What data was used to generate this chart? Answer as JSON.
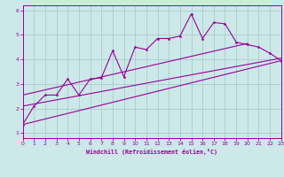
{
  "xlabel": "Windchill (Refroidissement éolien,°C)",
  "xlim": [
    0,
    23
  ],
  "ylim": [
    0.8,
    6.2
  ],
  "xticks": [
    0,
    1,
    2,
    3,
    4,
    5,
    6,
    7,
    8,
    9,
    10,
    11,
    12,
    13,
    14,
    15,
    16,
    17,
    18,
    19,
    20,
    21,
    22,
    23
  ],
  "yticks": [
    1,
    2,
    3,
    4,
    5,
    6
  ],
  "bg_color": "#cce8e8",
  "grid_color": "#aacccc",
  "line_color": "#990099",
  "scatter_x": [
    0,
    1,
    2,
    3,
    4,
    5,
    6,
    7,
    8,
    9,
    10,
    11,
    12,
    13,
    14,
    15,
    16,
    17,
    18,
    19,
    20,
    21,
    22,
    23
  ],
  "scatter_y": [
    1.35,
    2.1,
    2.55,
    2.55,
    3.2,
    2.55,
    3.2,
    3.25,
    4.35,
    3.3,
    4.5,
    4.4,
    4.85,
    4.85,
    4.95,
    5.85,
    4.85,
    5.5,
    5.45,
    4.7,
    4.6,
    4.5,
    4.25,
    3.95
  ],
  "line1_x": [
    0,
    23
  ],
  "line1_y": [
    1.35,
    3.95
  ],
  "line2_x": [
    0,
    20
  ],
  "line2_y": [
    2.55,
    4.65
  ],
  "line3_x": [
    0,
    23
  ],
  "line3_y": [
    2.1,
    4.05
  ]
}
